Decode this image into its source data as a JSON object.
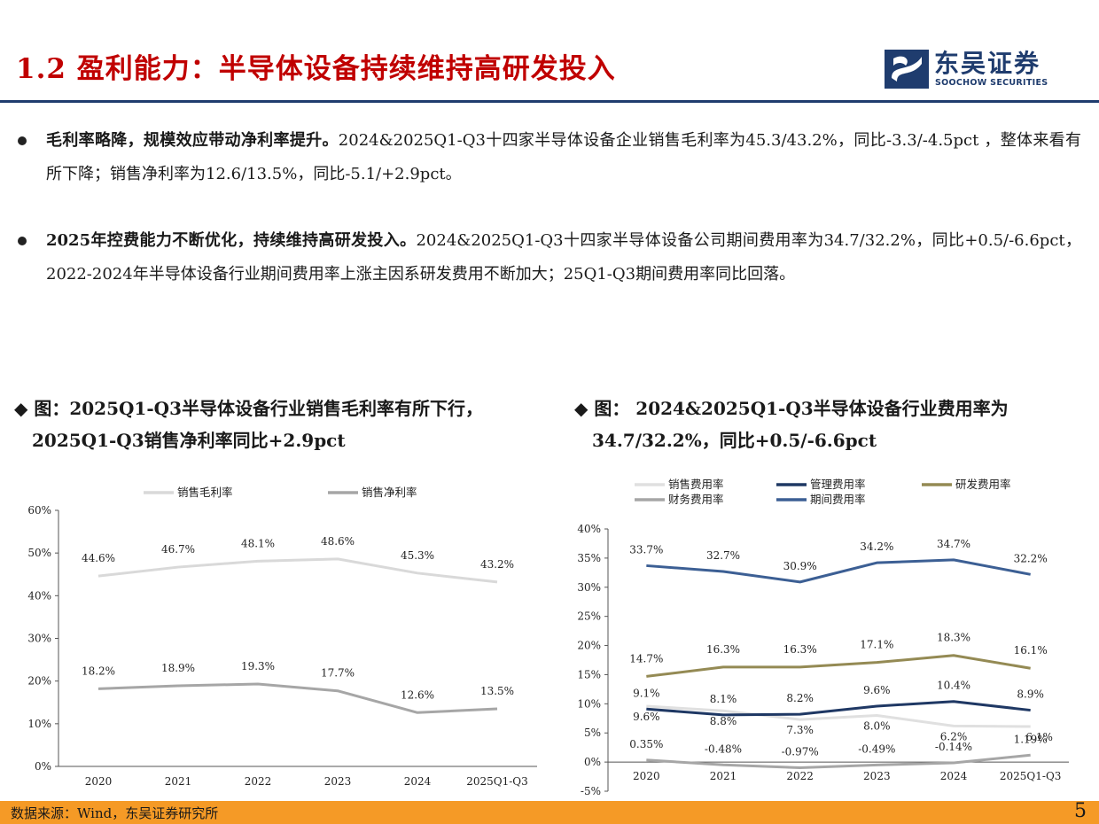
{
  "header": {
    "title": "1.2 盈利能力：半导体设备持续维持高研发投入",
    "logo_name": "东吴证券",
    "logo_sub": "SOOCHOW SECURITIES"
  },
  "bullets": [
    {
      "bold": "毛利率略降，规模效应带动净利率提升。",
      "text": "2024&2025Q1-Q3十四家半导体设备企业销售毛利率为45.3/43.2%，同比-3.3/-4.5pct ，整体来看有所下降；销售净利率为12.6/13.5%，同比-5.1/+2.9pct。"
    },
    {
      "bold": "2025年控费能力不断优化，持续维持高研发投入。",
      "text": "2024&2025Q1-Q3十四家半导体设备公司期间费用率为34.7/32.2%，同比+0.5/-6.6pct，2022-2024年半导体设备行业期间费用率上涨主因系研发费用不断加大；25Q1-Q3期间费用率同比回落。"
    }
  ],
  "captions": {
    "left_line1": "◆ 图：2025Q1-Q3半导体设备行业销售毛利率有所下行，",
    "left_line2": "2025Q1-Q3销售净利率同比+2.9pct",
    "right_line1": "◆ 图： 2024&2025Q1-Q3半导体设备行业费用率为",
    "right_line2": "34.7/32.2%，同比+0.5/-6.6pct"
  },
  "chart_data": [
    {
      "type": "line",
      "categories": [
        "2020",
        "2021",
        "2022",
        "2023",
        "2024",
        "2025Q1-Q3"
      ],
      "y_ticks": [
        "0%",
        "10%",
        "20%",
        "30%",
        "40%",
        "50%",
        "60%"
      ],
      "ylim": [
        0,
        60
      ],
      "legend_position": "top",
      "series": [
        {
          "name": "销售毛利率",
          "values": [
            44.6,
            46.7,
            48.1,
            48.6,
            45.3,
            43.2
          ],
          "labels": [
            "44.6%",
            "46.7%",
            "48.1%",
            "48.6%",
            "45.3%",
            "43.2%"
          ],
          "color": "#d9d9d9"
        },
        {
          "name": "销售净利率",
          "values": [
            18.2,
            18.9,
            19.3,
            17.7,
            12.6,
            13.5
          ],
          "labels": [
            "18.2%",
            "18.9%",
            "19.3%",
            "17.7%",
            "12.6%",
            "13.5%"
          ],
          "color": "#a6a6a6"
        }
      ]
    },
    {
      "type": "line",
      "categories": [
        "2020",
        "2021",
        "2022",
        "2023",
        "2024",
        "2025Q1-Q3"
      ],
      "y_ticks": [
        "-5%",
        "0%",
        "5%",
        "10%",
        "15%",
        "20%",
        "25%",
        "30%",
        "35%",
        "40%"
      ],
      "ylim": [
        -5,
        40
      ],
      "legend_position": "top",
      "series": [
        {
          "name": "销售费用率",
          "values": [
            9.6,
            8.8,
            7.3,
            8.0,
            6.2,
            6.1
          ],
          "labels": [
            "9.6%",
            "8.8%",
            "7.3%",
            "8.0%",
            "6.2%",
            "6.1%"
          ],
          "color": "#e0e0e0"
        },
        {
          "name": "管理费用率",
          "values": [
            9.1,
            8.1,
            8.2,
            9.6,
            10.4,
            8.9
          ],
          "labels": [
            "9.1%",
            "8.1%",
            "8.2%",
            "9.6%",
            "10.4%",
            "8.9%"
          ],
          "color": "#1f3864"
        },
        {
          "name": "研发费用率",
          "values": [
            14.7,
            16.3,
            16.3,
            17.1,
            18.3,
            16.1
          ],
          "labels": [
            "14.7%",
            "16.3%",
            "16.3%",
            "17.1%",
            "18.3%",
            "16.1%"
          ],
          "color": "#948a54"
        },
        {
          "name": "财务费用率",
          "values": [
            0.35,
            -0.48,
            -0.97,
            -0.49,
            -0.14,
            1.19
          ],
          "labels": [
            "0.35%",
            "-0.48%",
            "-0.97%",
            "-0.49%",
            "-0.14%",
            "1.19%"
          ],
          "color": "#a6a6a6"
        },
        {
          "name": "期间费用率",
          "values": [
            33.7,
            32.7,
            30.9,
            34.2,
            34.7,
            32.2
          ],
          "labels": [
            "33.7%",
            "32.7%",
            "30.9%",
            "34.2%",
            "34.7%",
            "32.2%"
          ],
          "color": "#3c5f94"
        }
      ]
    }
  ],
  "footer": {
    "source": "数据来源：Wind，东吴证券研究所",
    "page": "5"
  }
}
